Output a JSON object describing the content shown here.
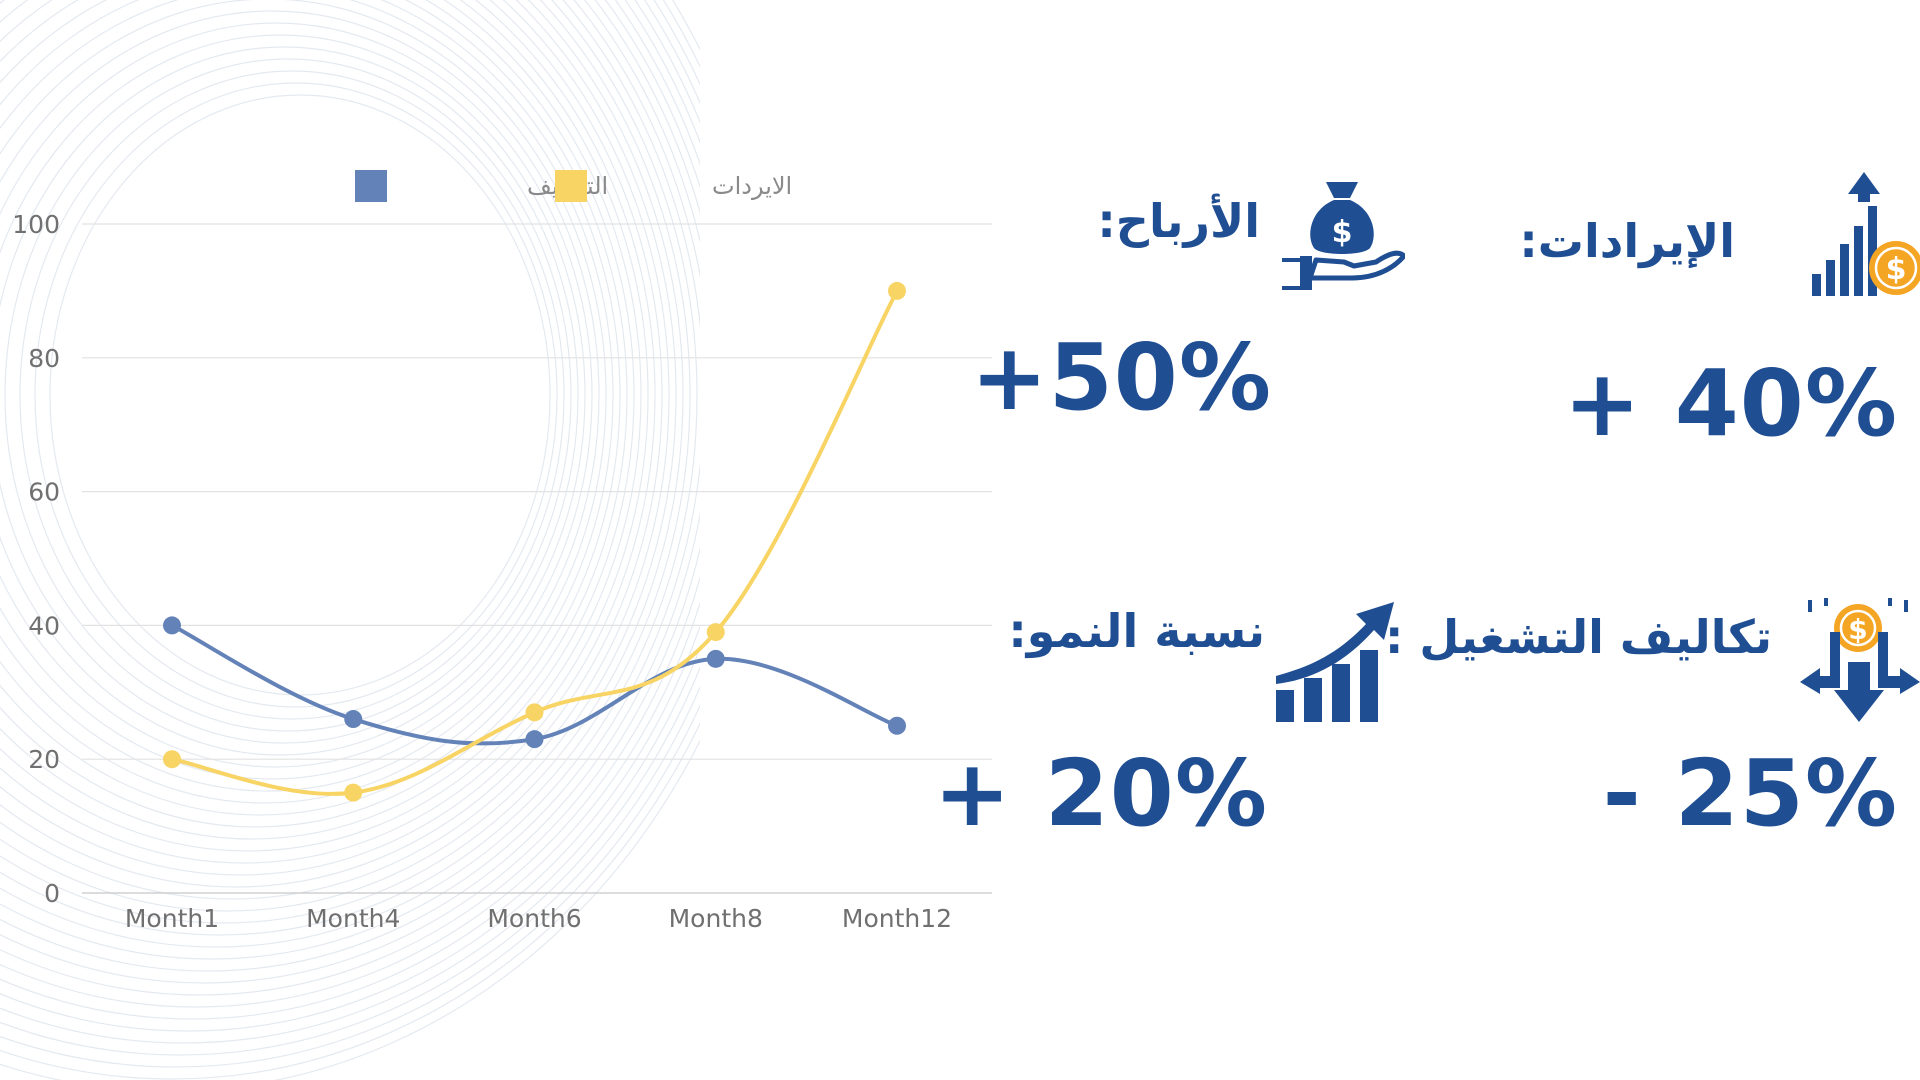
{
  "chart_data": {
    "type": "line",
    "categories": [
      "Month1",
      "Month4",
      "Month6",
      "Month8",
      "Month12"
    ],
    "series": [
      {
        "name": "التكاليف",
        "values": [
          40,
          26,
          23,
          35,
          25
        ],
        "color": "#6382b8"
      },
      {
        "name": "الايردات",
        "values": [
          20,
          15,
          27,
          39,
          90
        ],
        "color": "#f8d465"
      }
    ],
    "y_ticks": [
      "0",
      "20",
      "40",
      "60",
      "80",
      "100"
    ],
    "ylim": [
      0,
      100
    ],
    "grid": true,
    "legend_position": "top-center",
    "smooth": true
  },
  "kpis": {
    "revenue": {
      "label": "الإيرادات:",
      "value": "+ 40%",
      "icon": "bar-chart-dollar-icon"
    },
    "profit": {
      "label": "الأرباح:",
      "value": "+50%",
      "icon": "money-bag-hand-icon"
    },
    "operating_costs": {
      "label": "تكاليف التشغيل :",
      "value": "- 25%",
      "icon": "cost-down-arrow-icon"
    },
    "growth": {
      "label": "نسبة النمو:",
      "value": "+ 20%",
      "icon": "growth-arrow-icon"
    }
  },
  "colors": {
    "navy": "#1f4e93",
    "coin": "#f5a524",
    "series_costs": "#6382b8",
    "series_revenue": "#f8d465",
    "grid": "#e2e2e2"
  }
}
